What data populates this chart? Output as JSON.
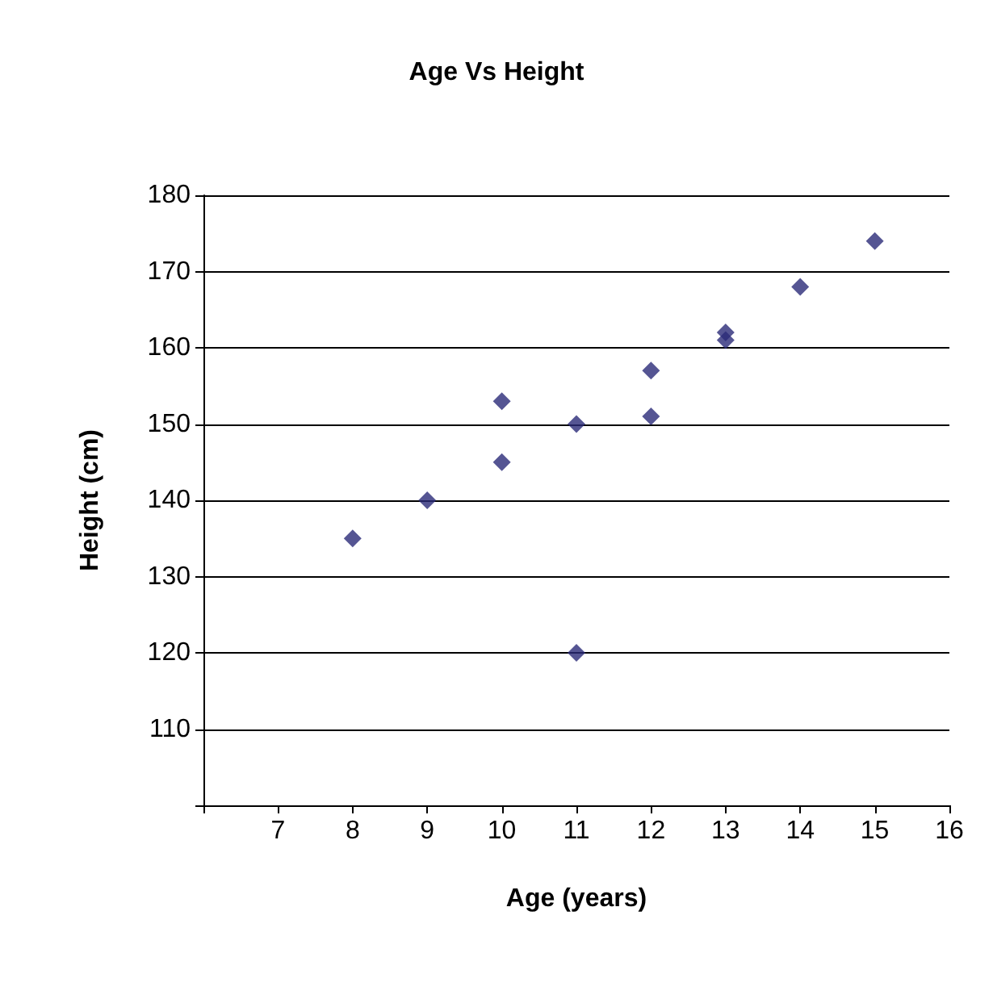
{
  "chart_data": {
    "type": "scatter",
    "title": "Age Vs Height",
    "xlabel": "Age (years)",
    "ylabel": "Height (cm)",
    "x": [
      8,
      9,
      10,
      10,
      11,
      11,
      12,
      12,
      13,
      13,
      14,
      15
    ],
    "series": [
      {
        "color": "#2b2b78",
        "values": [
          135,
          140,
          153,
          145,
          150,
          120,
          157,
          151,
          162,
          161,
          168,
          174
        ]
      }
    ],
    "xlim": [
      6,
      16
    ],
    "xticks": [
      {
        "value": 6,
        "label": null
      },
      7,
      8,
      9,
      10,
      11,
      12,
      13,
      14,
      15,
      16
    ],
    "ylim": [
      100,
      180
    ],
    "yticks": [
      {
        "value": 100,
        "label": null
      },
      110,
      120,
      130,
      140,
      150,
      160,
      170,
      180
    ],
    "grid": "y",
    "marker": "diamond"
  }
}
